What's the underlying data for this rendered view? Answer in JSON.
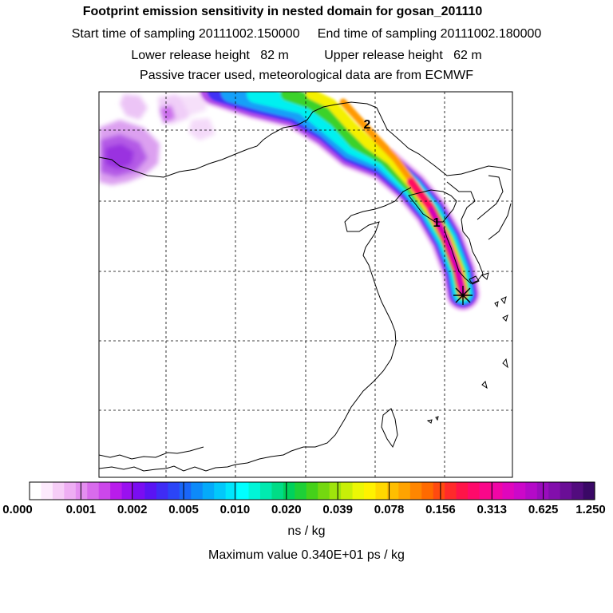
{
  "header": {
    "title": "Footprint emission sensitivity in nested domain for gosan_201110",
    "sampling_line": "Start time of sampling 20111002.150000     End time of sampling 20111002.180000",
    "release_line": "Lower release height   82 m          Upper release height   62 m",
    "tracer_line": "Passive tracer used, meteorological data are from ECMWF"
  },
  "map": {
    "markers": [
      "2",
      "1"
    ],
    "receptor_symbol": "star"
  },
  "colorbar": {
    "ticks": [
      "0.000",
      "0.001",
      "0.002",
      "0.005",
      "0.010",
      "0.020",
      "0.039",
      "0.078",
      "0.156",
      "0.313",
      "0.625",
      "1.250"
    ],
    "colors": [
      "#ffffff",
      "#fdeafd",
      "#f6cdf7",
      "#eeaef3",
      "#e48ef0",
      "#d86bec",
      "#cc47ea",
      "#b91ceb",
      "#9a10ef",
      "#7a0df2",
      "#5a14f3",
      "#3f2cf5",
      "#2b45f7",
      "#1a66f8",
      "#0d8af9",
      "#05aafa",
      "#02c8fb",
      "#00e6fc",
      "#00ffff",
      "#00f5d8",
      "#00eab0",
      "#00dc86",
      "#00d15c",
      "#1ed037",
      "#45d11a",
      "#74d810",
      "#9fe40c",
      "#c8ef08",
      "#ecf705",
      "#fff200",
      "#ffd800",
      "#ffbe00",
      "#ffa300",
      "#ff8600",
      "#ff6a00",
      "#ff4a10",
      "#ff2a2a",
      "#ff1448",
      "#ff0a6a",
      "#fa078a",
      "#f006a6",
      "#e006bc",
      "#cc08c9",
      "#b40ac8",
      "#9a0cbd",
      "#820eac",
      "#6a0e96",
      "#520c7e",
      "#3a0866"
    ],
    "unit": "ns / kg"
  },
  "footer": {
    "max_value": "Maximum value  0.340E+01 ps / kg"
  }
}
